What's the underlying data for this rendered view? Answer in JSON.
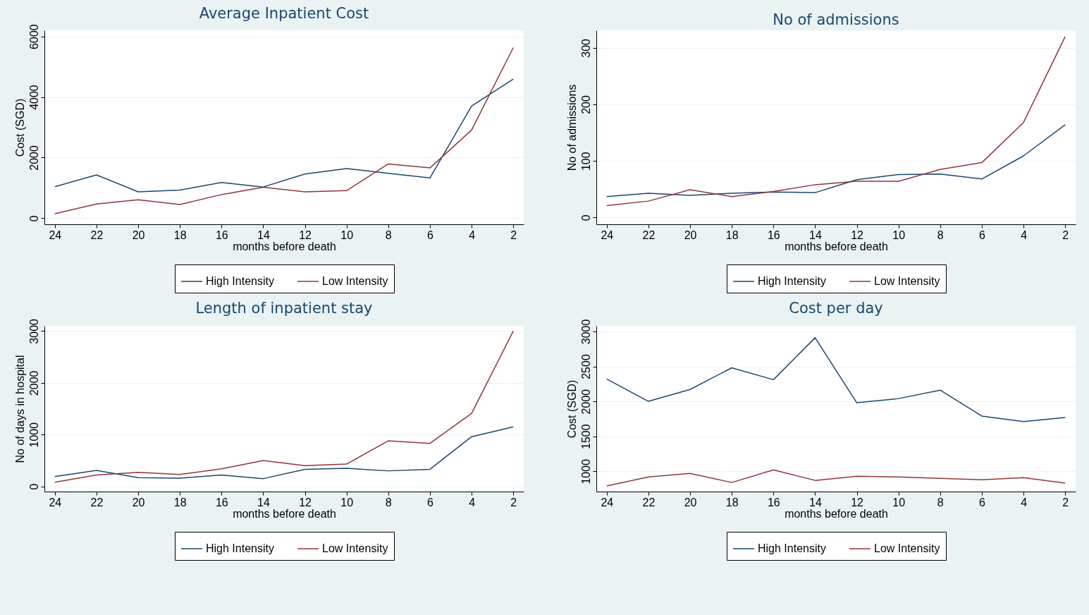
{
  "chart_data": [
    {
      "type": "line",
      "title": "Average Inpatient Cost",
      "xlabel": "months before death",
      "ylabel": "Cost (SGD)",
      "x": [
        24,
        22,
        20,
        18,
        16,
        14,
        12,
        10,
        8,
        6,
        4,
        2
      ],
      "xlim": [
        24.5,
        1.5
      ],
      "xticks": [
        24,
        22,
        20,
        18,
        16,
        14,
        12,
        10,
        8,
        6,
        4,
        2
      ],
      "ylim": [
        -200,
        6200
      ],
      "yticks": [
        0,
        2000,
        4000,
        6000
      ],
      "grid": "y",
      "legend": "bottom",
      "series": [
        {
          "name": "High Intensity",
          "color": "#1a476f",
          "values": [
            1040,
            1430,
            870,
            930,
            1180,
            1030,
            1460,
            1640,
            1480,
            1330,
            3700,
            4590
          ]
        },
        {
          "name": "Low Intensity",
          "color": "#90353b",
          "values": [
            150,
            470,
            610,
            450,
            780,
            1020,
            870,
            910,
            1790,
            1660,
            2910,
            5630
          ]
        }
      ]
    },
    {
      "type": "line",
      "title": "No of admissions",
      "xlabel": "months before death",
      "ylabel": "No of admissions",
      "x": [
        24,
        22,
        20,
        18,
        16,
        14,
        12,
        10,
        8,
        6,
        4,
        2
      ],
      "xlim": [
        24.5,
        1.5
      ],
      "xticks": [
        24,
        22,
        20,
        18,
        16,
        14,
        12,
        10,
        8,
        6,
        4,
        2
      ],
      "ylim": [
        -12,
        331
      ],
      "yticks": [
        0,
        100,
        200,
        300
      ],
      "grid": "y",
      "legend": "bottom",
      "series": [
        {
          "name": "High Intensity",
          "color": "#1a476f",
          "values": [
            37,
            43,
            39,
            43,
            45,
            44,
            67,
            76,
            77,
            68,
            109,
            164
          ]
        },
        {
          "name": "Low Intensity",
          "color": "#90353b",
          "values": [
            21,
            29,
            49,
            37,
            46,
            58,
            64,
            64,
            85,
            97,
            168,
            320
          ]
        }
      ]
    },
    {
      "type": "line",
      "title": "Length of inpatient stay",
      "xlabel": "months before death",
      "ylabel": "No of days in hospital",
      "x": [
        24,
        22,
        20,
        18,
        16,
        14,
        12,
        10,
        8,
        6,
        4,
        2
      ],
      "xlim": [
        24.5,
        1.5
      ],
      "xticks": [
        24,
        22,
        20,
        18,
        16,
        14,
        12,
        10,
        8,
        6,
        4,
        2
      ],
      "ylim": [
        -100,
        3100
      ],
      "yticks": [
        0,
        1000,
        2000,
        3000
      ],
      "grid": "y",
      "legend": "bottom",
      "series": [
        {
          "name": "High Intensity",
          "color": "#1a476f",
          "values": [
            190,
            310,
            170,
            160,
            220,
            150,
            330,
            350,
            300,
            330,
            960,
            1150
          ]
        },
        {
          "name": "Low Intensity",
          "color": "#90353b",
          "values": [
            80,
            220,
            270,
            230,
            340,
            500,
            400,
            430,
            880,
            830,
            1410,
            3000
          ]
        }
      ]
    },
    {
      "type": "line",
      "title": "Cost per day",
      "xlabel": "months before death",
      "ylabel": "Cost (SGD)",
      "x": [
        24,
        22,
        20,
        18,
        16,
        14,
        12,
        10,
        8,
        6,
        4,
        2
      ],
      "xlim": [
        24.5,
        1.5
      ],
      "xticks": [
        24,
        22,
        20,
        18,
        16,
        14,
        12,
        10,
        8,
        6,
        4,
        2
      ],
      "ylim": [
        710,
        3080
      ],
      "yticks": [
        1000,
        1500,
        2000,
        2500,
        3000
      ],
      "grid": "y",
      "legend": "bottom",
      "series": [
        {
          "name": "High Intensity",
          "color": "#1a476f",
          "values": [
            2320,
            2000,
            2170,
            2480,
            2310,
            2910,
            1980,
            2040,
            2160,
            1790,
            1710,
            1770
          ]
        },
        {
          "name": "Low Intensity",
          "color": "#90353b",
          "values": [
            790,
            920,
            970,
            840,
            1020,
            870,
            930,
            920,
            900,
            880,
            910,
            830
          ]
        }
      ]
    }
  ]
}
